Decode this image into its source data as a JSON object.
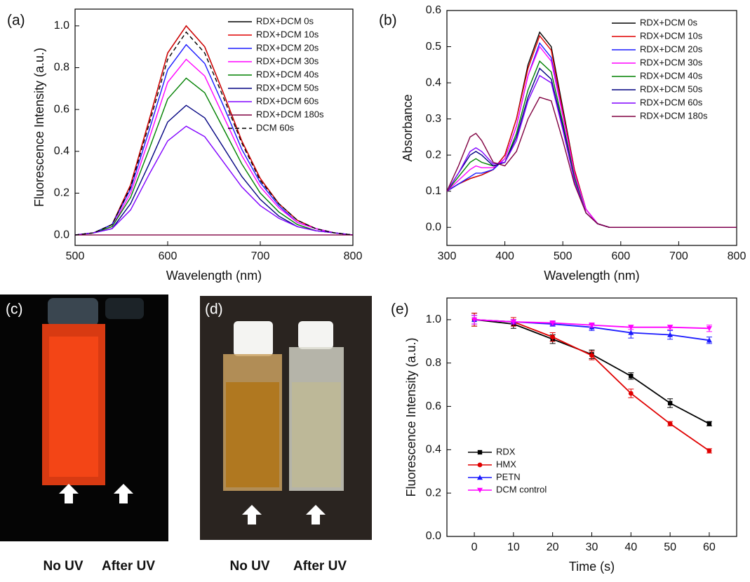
{
  "chart_data": [
    {
      "type": "line",
      "panel_label": "(a)",
      "xlabel": "Wavelength (nm)",
      "ylabel": "Fluorescence Intensity (a.u.)",
      "x": [
        500,
        520,
        540,
        560,
        580,
        600,
        620,
        640,
        660,
        680,
        700,
        720,
        740,
        760,
        780,
        800
      ],
      "series": [
        {
          "name": "RDX+DCM 0s",
          "color": "#000000",
          "values": [
            0,
            0.01,
            0.05,
            0.24,
            0.55,
            0.87,
            1.0,
            0.9,
            0.68,
            0.45,
            0.27,
            0.15,
            0.07,
            0.03,
            0.01,
            0
          ]
        },
        {
          "name": "RDX+DCM 10s",
          "color": "#e00000",
          "values": [
            0,
            0.01,
            0.05,
            0.24,
            0.55,
            0.87,
            1.0,
            0.9,
            0.68,
            0.45,
            0.27,
            0.15,
            0.07,
            0.03,
            0.01,
            0
          ]
        },
        {
          "name": "RDX+DCM 20s",
          "color": "#1a1aff",
          "values": [
            0,
            0.01,
            0.05,
            0.22,
            0.5,
            0.79,
            0.91,
            0.82,
            0.62,
            0.41,
            0.25,
            0.14,
            0.06,
            0.03,
            0.01,
            0
          ]
        },
        {
          "name": "RDX+DCM 30s",
          "color": "#ff00ff",
          "values": [
            0,
            0.01,
            0.04,
            0.2,
            0.46,
            0.73,
            0.84,
            0.76,
            0.57,
            0.38,
            0.23,
            0.13,
            0.06,
            0.03,
            0.01,
            0
          ]
        },
        {
          "name": "RDX+DCM 40s",
          "color": "#008000",
          "values": [
            0,
            0.01,
            0.04,
            0.18,
            0.41,
            0.65,
            0.75,
            0.68,
            0.51,
            0.34,
            0.2,
            0.11,
            0.05,
            0.02,
            0.01,
            0
          ]
        },
        {
          "name": "RDX+DCM 50s",
          "color": "#000080",
          "values": [
            0,
            0.01,
            0.03,
            0.15,
            0.34,
            0.54,
            0.62,
            0.56,
            0.42,
            0.28,
            0.17,
            0.09,
            0.04,
            0.02,
            0.01,
            0
          ]
        },
        {
          "name": "RDX+DCM 60s",
          "color": "#8000ff",
          "values": [
            0,
            0.01,
            0.03,
            0.12,
            0.29,
            0.45,
            0.52,
            0.47,
            0.35,
            0.23,
            0.14,
            0.08,
            0.04,
            0.02,
            0.01,
            0
          ]
        },
        {
          "name": "RDX+DCM 180s",
          "color": "#800040",
          "values": [
            0,
            0,
            0,
            0,
            0,
            0,
            0,
            0,
            0,
            0,
            0,
            0,
            0,
            0,
            0,
            0
          ]
        },
        {
          "name": "DCM 60s",
          "color": "#000000",
          "linestyle": "dashed",
          "values": [
            0,
            0.01,
            0.05,
            0.23,
            0.53,
            0.84,
            0.97,
            0.87,
            0.66,
            0.44,
            0.26,
            0.15,
            0.07,
            0.03,
            0.01,
            0
          ]
        }
      ],
      "xlim": [
        500,
        800
      ],
      "xticks": [
        500,
        600,
        700,
        800
      ],
      "ylim": [
        -0.05,
        1.08
      ],
      "yticks": [
        {
          "value": 0,
          "label": "0.0"
        },
        0.2,
        0.4,
        0.6,
        0.8,
        {
          "value": 1,
          "label": "1.0"
        }
      ],
      "legend": "upper right"
    },
    {
      "type": "line",
      "panel_label": "(b)",
      "xlabel": "Wavelength (nm)",
      "ylabel": "Absorbance",
      "x": [
        300,
        320,
        340,
        350,
        360,
        380,
        400,
        420,
        440,
        460,
        480,
        500,
        520,
        540,
        560,
        580,
        600,
        650,
        700,
        750,
        800
      ],
      "series": [
        {
          "name": "RDX+DCM 0s",
          "color": "#000000",
          "values": [
            0.1,
            0.12,
            0.135,
            0.14,
            0.145,
            0.16,
            0.2,
            0.3,
            0.45,
            0.54,
            0.5,
            0.33,
            0.16,
            0.05,
            0.01,
            0,
            0,
            0,
            0,
            0,
            0
          ]
        },
        {
          "name": "RDX+DCM 10s",
          "color": "#e00000",
          "values": [
            0.1,
            0.12,
            0.135,
            0.14,
            0.145,
            0.16,
            0.2,
            0.3,
            0.44,
            0.53,
            0.49,
            0.32,
            0.16,
            0.05,
            0.01,
            0,
            0,
            0,
            0,
            0,
            0
          ]
        },
        {
          "name": "RDX+DCM 20s",
          "color": "#1a1aff",
          "values": [
            0.1,
            0.12,
            0.14,
            0.15,
            0.15,
            0.16,
            0.19,
            0.28,
            0.42,
            0.51,
            0.47,
            0.31,
            0.15,
            0.05,
            0.01,
            0,
            0,
            0,
            0,
            0,
            0
          ]
        },
        {
          "name": "RDX+DCM 30s",
          "color": "#ff00ff",
          "values": [
            0.1,
            0.13,
            0.16,
            0.17,
            0.165,
            0.165,
            0.19,
            0.28,
            0.42,
            0.5,
            0.46,
            0.31,
            0.15,
            0.05,
            0.01,
            0,
            0,
            0,
            0,
            0,
            0
          ]
        },
        {
          "name": "RDX+DCM 40s",
          "color": "#008000",
          "values": [
            0.1,
            0.14,
            0.18,
            0.19,
            0.18,
            0.17,
            0.18,
            0.26,
            0.38,
            0.46,
            0.43,
            0.29,
            0.14,
            0.04,
            0.01,
            0,
            0,
            0,
            0,
            0,
            0
          ]
        },
        {
          "name": "RDX+DCM 50s",
          "color": "#000080",
          "values": [
            0.1,
            0.15,
            0.2,
            0.21,
            0.2,
            0.17,
            0.18,
            0.25,
            0.36,
            0.44,
            0.41,
            0.28,
            0.13,
            0.04,
            0.01,
            0,
            0,
            0,
            0,
            0,
            0
          ]
        },
        {
          "name": "RDX+DCM 60s",
          "color": "#8000ff",
          "values": [
            0.1,
            0.15,
            0.21,
            0.22,
            0.21,
            0.175,
            0.18,
            0.24,
            0.35,
            0.42,
            0.4,
            0.27,
            0.13,
            0.04,
            0.01,
            0,
            0,
            0,
            0,
            0,
            0
          ]
        },
        {
          "name": "RDX+DCM 180s",
          "color": "#800040",
          "values": [
            0.1,
            0.17,
            0.25,
            0.26,
            0.24,
            0.18,
            0.17,
            0.21,
            0.3,
            0.36,
            0.35,
            0.24,
            0.12,
            0.04,
            0.01,
            0,
            0,
            0,
            0,
            0,
            0
          ]
        }
      ],
      "xlim": [
        300,
        800
      ],
      "xticks": [
        300,
        400,
        500,
        600,
        700,
        800
      ],
      "ylim": [
        -0.05,
        0.6
      ],
      "yticks": [
        {
          "value": 0,
          "label": "0.0"
        },
        0.1,
        0.2,
        0.3,
        0.4,
        0.5,
        0.6
      ],
      "legend": "upper right"
    },
    {
      "type": "errorline",
      "panel_label": "(e)",
      "xlabel": "Time (s)",
      "ylabel": "Fluorescence Intensity (a.u.)",
      "x": [
        0,
        10,
        20,
        30,
        40,
        50,
        60
      ],
      "series": [
        {
          "name": "RDX",
          "color": "#000000",
          "marker": "square",
          "values": [
            1.0,
            0.98,
            0.91,
            0.84,
            0.74,
            0.615,
            0.52
          ],
          "errors": [
            0.03,
            0.02,
            0.02,
            0.02,
            0.015,
            0.02,
            0.01
          ]
        },
        {
          "name": "HMX",
          "color": "#e00000",
          "marker": "circle",
          "values": [
            1.0,
            0.99,
            0.92,
            0.835,
            0.66,
            0.52,
            0.395
          ],
          "errors": [
            0.03,
            0.02,
            0.02,
            0.02,
            0.02,
            0.01,
            0.01
          ]
        },
        {
          "name": "PETN",
          "color": "#1a1aff",
          "marker": "triangle-up",
          "values": [
            1.0,
            0.99,
            0.98,
            0.965,
            0.94,
            0.93,
            0.905
          ],
          "errors": [
            0.02,
            0.01,
            0.01,
            0.015,
            0.025,
            0.02,
            0.015
          ]
        },
        {
          "name": "DCM control",
          "color": "#ff00ff",
          "marker": "triangle-down",
          "values": [
            1.0,
            0.99,
            0.985,
            0.975,
            0.965,
            0.965,
            0.96
          ],
          "errors": [
            0.02,
            0.01,
            0.01,
            0.01,
            0.01,
            0.01,
            0.015
          ]
        }
      ],
      "xlim": [
        -7,
        67
      ],
      "xticks": [
        0,
        10,
        20,
        30,
        40,
        50,
        60
      ],
      "ylim": [
        0,
        1.1
      ],
      "yticks": [
        {
          "value": 0,
          "label": "0.0"
        },
        0.2,
        0.4,
        0.6,
        0.8,
        {
          "value": 1,
          "label": "1.0"
        }
      ],
      "legend": "lower left"
    }
  ],
  "photos": [
    {
      "label": "(c)",
      "captions": [
        "No UV",
        "After UV"
      ]
    },
    {
      "label": "(d)",
      "captions": [
        "No UV",
        "After UV"
      ]
    }
  ]
}
